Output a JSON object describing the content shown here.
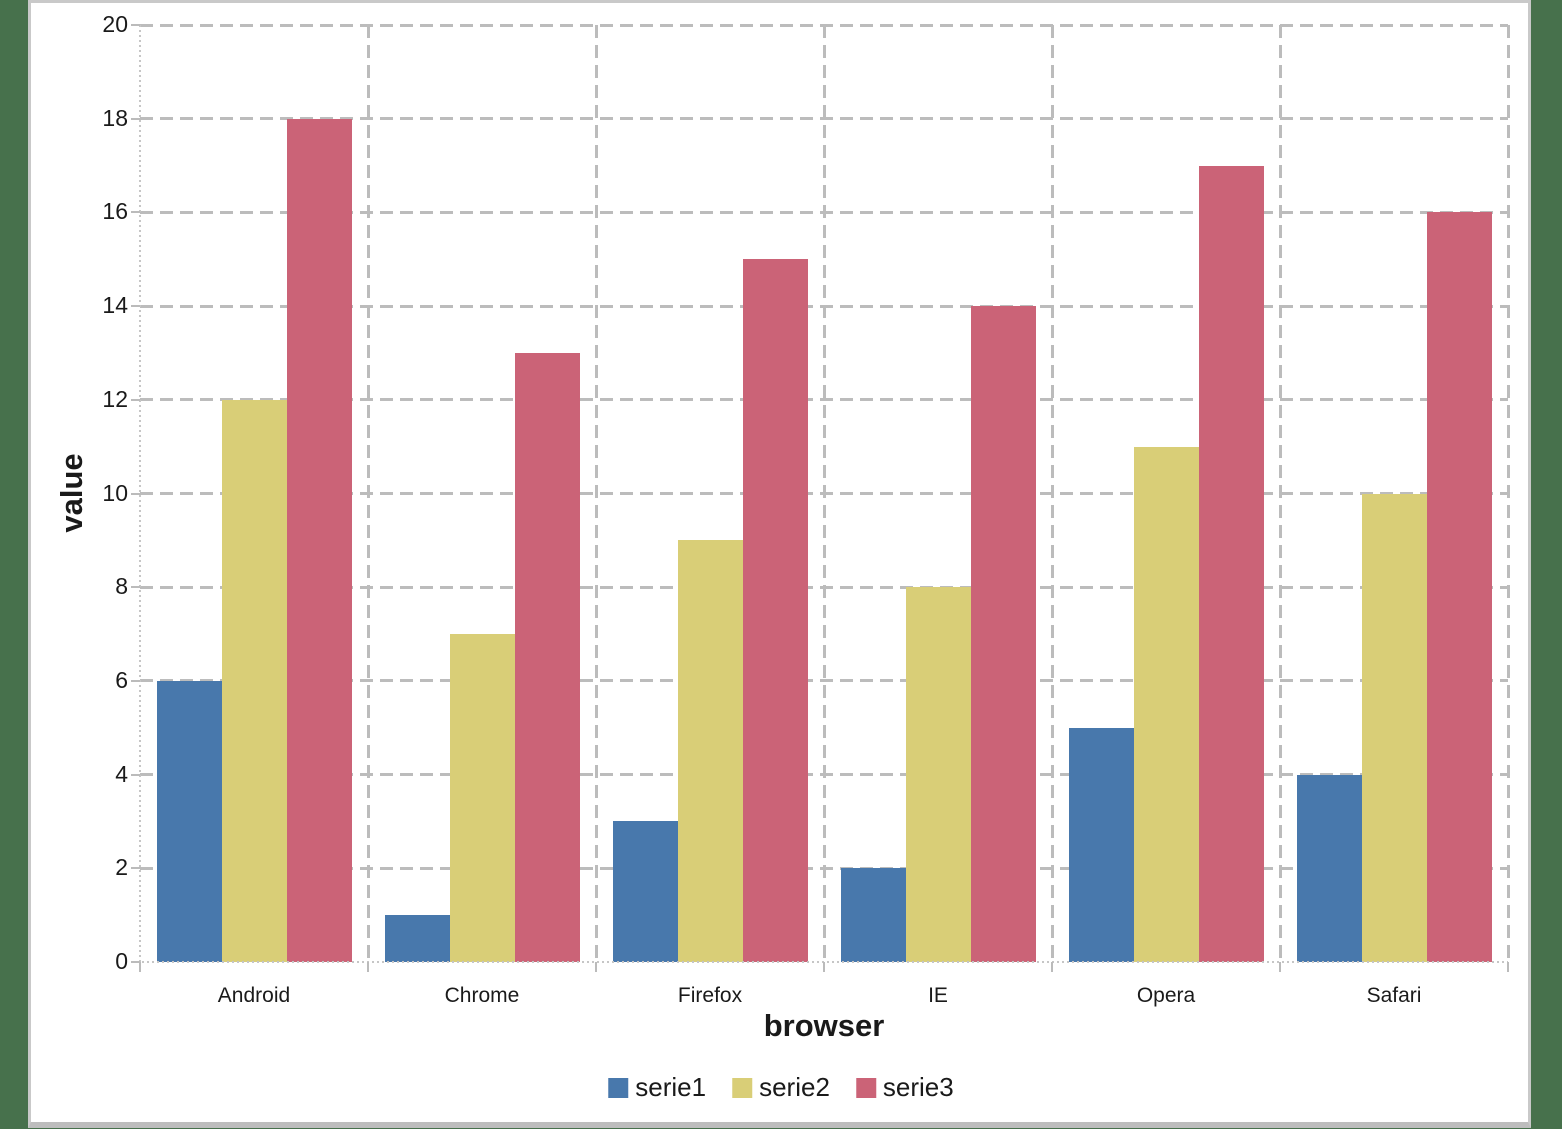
{
  "page": {
    "background_color": "#47714C",
    "canvas_color": "#FFFFFF",
    "canvas_border_color": "#C9C9C9",
    "gridline_color": "#BCBCBC"
  },
  "chart_data": {
    "type": "bar",
    "title": "",
    "xlabel": "browser",
    "ylabel": "value",
    "categories": [
      "Android",
      "Chrome",
      "Firefox",
      "IE",
      "Opera",
      "Safari"
    ],
    "series": [
      {
        "name": "serie1",
        "color": "#4878AC",
        "values": [
          6,
          1,
          3,
          2,
          5,
          4
        ]
      },
      {
        "name": "serie2",
        "color": "#D9CE77",
        "values": [
          12,
          7,
          9,
          8,
          11,
          10
        ]
      },
      {
        "name": "serie3",
        "color": "#CB6377",
        "values": [
          18,
          13,
          15,
          14,
          17,
          16
        ]
      }
    ],
    "ylim": [
      0,
      20
    ],
    "yticks": [
      0,
      2,
      4,
      6,
      8,
      10,
      12,
      14,
      16,
      18,
      20
    ],
    "grid": "horizontal dashed lines every 2 units; vertical dashed lines at category boundaries",
    "legend_position": "bottom-center",
    "legend_labels": [
      "serie1",
      "serie2",
      "serie3"
    ]
  }
}
